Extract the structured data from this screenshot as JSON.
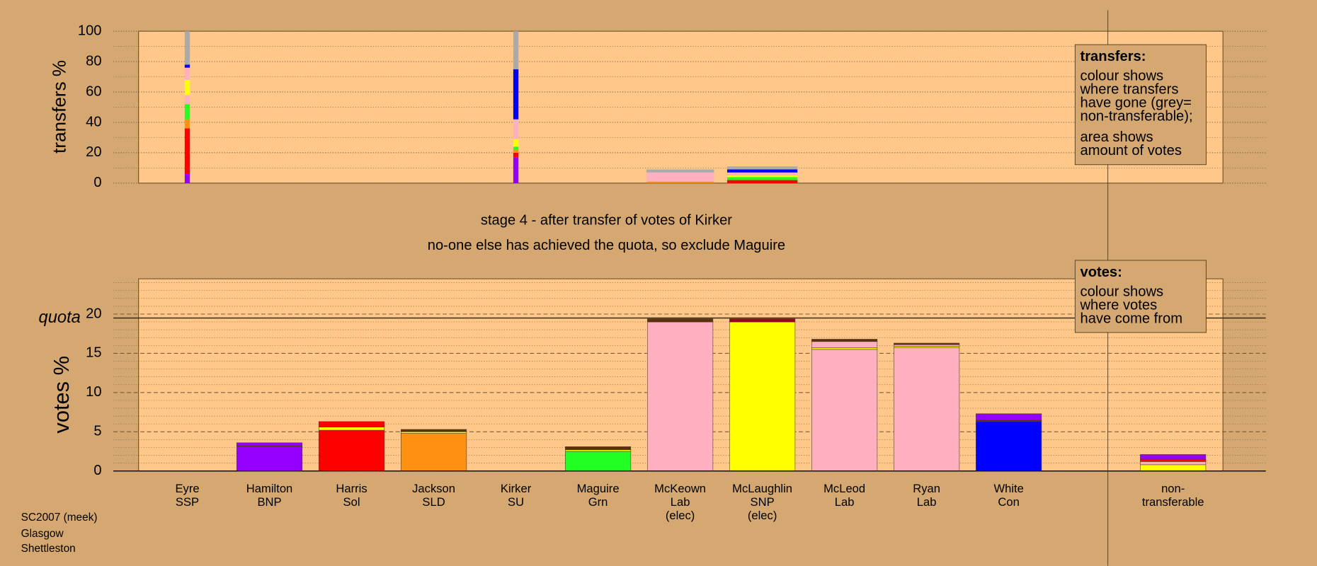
{
  "footer": [
    "SC2007 (meek)",
    "Glasgow",
    "Shettleston"
  ],
  "subtitle": [
    "stage 4 - after transfer of votes of Kirker",
    "no-one else has achieved the quota, so exclude Maguire"
  ],
  "chart_data": [
    {
      "type": "transfer_bars",
      "ylabel": "transfers %",
      "ylim": [
        0,
        100
      ],
      "yticks": [
        0,
        20,
        40,
        60,
        80,
        100
      ],
      "minor_yticks": [
        10,
        30,
        50,
        70,
        90
      ],
      "grid_style": "dotted",
      "legend": {
        "title": "transfers:",
        "lines": [
          "colour shows",
          "where transfers",
          "have gone (grey=",
          "non-transferable);",
          "area shows",
          "amount of votes"
        ]
      },
      "bars": [
        {
          "votes_transferred": 0.1,
          "segments": [
            {
              "color": "#9400ff",
              "value": 6
            },
            {
              "color": "#ff0000",
              "value": 30
            },
            {
              "color": "#ff9010",
              "value": 6
            },
            {
              "color": "#22ff22",
              "value": 10
            },
            {
              "color": "#ffb0c0",
              "value": 6
            },
            {
              "color": "#ffff00",
              "value": 10
            },
            {
              "color": "#ffb0c0",
              "value": 8
            },
            {
              "color": "#0000ff",
              "value": 2
            },
            {
              "color": "#aaaaaa",
              "value": 22
            }
          ]
        },
        {
          "votes_transferred": null,
          "segments": []
        },
        {
          "votes_transferred": null,
          "segments": []
        },
        {
          "votes_transferred": null,
          "segments": []
        },
        {
          "votes_transferred": 0.1,
          "segments": [
            {
              "color": "#9400ff",
              "value": 17
            },
            {
              "color": "#ff0000",
              "value": 3
            },
            {
              "color": "#ff9010",
              "value": 2
            },
            {
              "color": "#22ff22",
              "value": 2
            },
            {
              "color": "#ffff00",
              "value": 5
            },
            {
              "color": "#ffb0c0",
              "value": 13
            },
            {
              "color": "#0000ff",
              "value": 33
            },
            {
              "color": "#aaaaaa",
              "value": 25
            }
          ]
        },
        {
          "votes_transferred": null,
          "segments": []
        },
        {
          "votes_transferred": 1.3,
          "segments": [
            {
              "color": "#ff9010",
              "value": 1
            },
            {
              "color": "#ffb0c0",
              "value": 6
            },
            {
              "color": "#aaaaaa",
              "value": 2
            }
          ]
        },
        {
          "votes_transferred": 1.35,
          "segments": [
            {
              "color": "#ff0000",
              "value": 2
            },
            {
              "color": "#22ff22",
              "value": 2
            },
            {
              "color": "#ffff00",
              "value": 1
            },
            {
              "color": "#ffb0c0",
              "value": 2
            },
            {
              "color": "#0000ff",
              "value": 2
            },
            {
              "color": "#aaaaaa",
              "value": 2
            }
          ]
        },
        {
          "votes_transferred": null,
          "segments": []
        },
        {
          "votes_transferred": null,
          "segments": []
        },
        {
          "votes_transferred": null,
          "segments": []
        },
        {
          "votes_transferred": null,
          "segments": []
        },
        {
          "votes_transferred": null,
          "segments": []
        }
      ]
    },
    {
      "type": "stacked_bar",
      "ylabel": "votes %",
      "ylim": [
        0,
        24.5
      ],
      "yticks": [
        0,
        5,
        10,
        15,
        20
      ],
      "minor_yticks": [
        1,
        2,
        3,
        4,
        6,
        7,
        8,
        9,
        11,
        12,
        13,
        14,
        16,
        17,
        18,
        19,
        21,
        22,
        23,
        24
      ],
      "grid_style": "dashed",
      "quota": {
        "label": "quota",
        "value": 19.5
      },
      "legend": {
        "title": "votes:",
        "lines": [
          "colour shows",
          "where votes",
          "have come from"
        ]
      },
      "categories": [
        [
          "Eyre",
          "SSP"
        ],
        [
          "Hamilton",
          "BNP"
        ],
        [
          "Harris",
          "Sol"
        ],
        [
          "Jackson",
          "SLD"
        ],
        [
          "Kirker",
          "SU"
        ],
        [
          "Maguire",
          "Grn"
        ],
        [
          "McKeown",
          "Lab",
          "(elec)"
        ],
        [
          "McLaughlin",
          "SNP",
          "(elec)"
        ],
        [
          "McLeod",
          "Lab"
        ],
        [
          "Ryan",
          "Lab"
        ],
        [
          "White",
          "Con"
        ],
        null,
        [
          "non-",
          "transferable"
        ]
      ],
      "bars": [
        {
          "segments": []
        },
        {
          "segments": [
            {
              "color": "#9400ff",
              "value": 3.1
            },
            {
              "color": "#5a3010",
              "value": 0.1
            },
            {
              "color": "#9400ff",
              "value": 0.4
            }
          ]
        },
        {
          "segments": [
            {
              "color": "#ff0000",
              "value": 5.2
            },
            {
              "color": "#ffff00",
              "value": 0.4
            },
            {
              "color": "#ff0000",
              "value": 0.7
            }
          ]
        },
        {
          "segments": [
            {
              "color": "#ff9010",
              "value": 4.8
            },
            {
              "color": "#ffff00",
              "value": 0.2
            },
            {
              "color": "#5a3010",
              "value": 0.3
            }
          ]
        },
        {
          "segments": []
        },
        {
          "segments": [
            {
              "color": "#22ff22",
              "value": 2.5
            },
            {
              "color": "#ffff00",
              "value": 0.2
            },
            {
              "color": "#5a3010",
              "value": 0.4
            }
          ]
        },
        {
          "segments": [
            {
              "color": "#ffb0c0",
              "value": 19.0
            },
            {
              "color": "#5a3010",
              "value": 0.4
            }
          ]
        },
        {
          "segments": [
            {
              "color": "#ffff00",
              "value": 19.0
            },
            {
              "color": "#a00020",
              "value": 0.4
            }
          ]
        },
        {
          "segments": [
            {
              "color": "#ffb0c0",
              "value": 15.5
            },
            {
              "color": "#ffff00",
              "value": 0.2
            },
            {
              "color": "#ffb0c0",
              "value": 0.8
            },
            {
              "color": "#5a3010",
              "value": 0.3
            }
          ]
        },
        {
          "segments": [
            {
              "color": "#ffb0c0",
              "value": 15.7
            },
            {
              "color": "#ffff00",
              "value": 0.2
            },
            {
              "color": "#ffb0c0",
              "value": 0.2
            },
            {
              "color": "#5a3010",
              "value": 0.2
            }
          ]
        },
        {
          "segments": [
            {
              "color": "#0000ff",
              "value": 6.3
            },
            {
              "color": "#5a3010",
              "value": 0.2
            },
            {
              "color": "#9400ff",
              "value": 0.8
            }
          ]
        },
        {
          "segments": []
        },
        {
          "segments": [
            {
              "color": "#ffff00",
              "value": 0.8
            },
            {
              "color": "#ffb0c0",
              "value": 0.4
            },
            {
              "color": "#ff0000",
              "value": 0.3
            },
            {
              "color": "#9400ff",
              "value": 0.6
            }
          ]
        }
      ]
    }
  ]
}
